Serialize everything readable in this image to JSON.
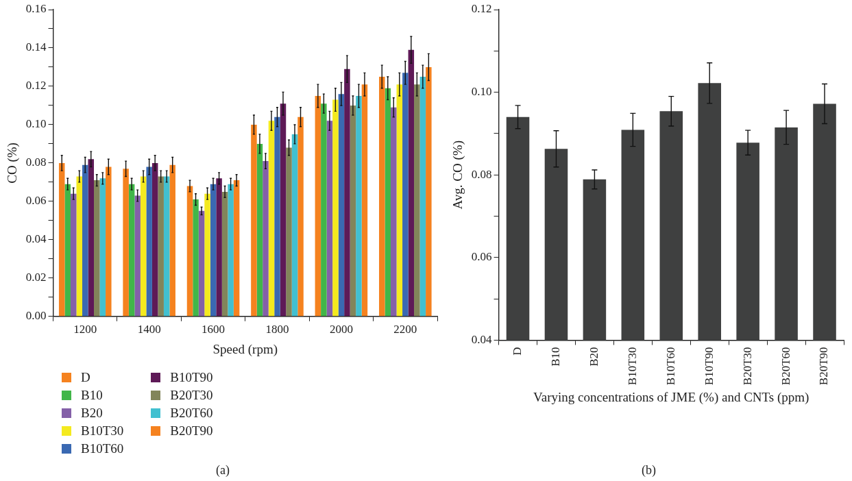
{
  "chart_data": [
    {
      "type": "bar",
      "xlabel": "Speed (rpm)",
      "ylabel": "CO (%)",
      "categories": [
        "1200",
        "1400",
        "1600",
        "1800",
        "2000",
        "2200"
      ],
      "ylim": [
        0,
        0.16
      ],
      "yticks": [
        {
          "value": 0,
          "label": "0.00"
        },
        {
          "value": 0.01,
          "label": null
        },
        0.02,
        {
          "value": 0.03,
          "label": null
        },
        0.04,
        {
          "value": 0.05,
          "label": null
        },
        0.06,
        {
          "value": 0.07,
          "label": null
        },
        0.08,
        {
          "value": 0.09,
          "label": null
        },
        {
          "value": 0.1,
          "label": "0.10"
        },
        {
          "value": 0.11,
          "label": null
        },
        0.12,
        {
          "value": 0.13,
          "label": null
        },
        0.14,
        {
          "value": 0.15,
          "label": null
        },
        0.16
      ],
      "legend": "bottom left",
      "series": [
        {
          "name": "D",
          "color": "#f5821f",
          "values": [
            0.08,
            0.077,
            0.068,
            0.1,
            0.115,
            0.125
          ],
          "errors": [
            0.004,
            0.004,
            0.003,
            0.005,
            0.006,
            0.006
          ]
        },
        {
          "name": "B10",
          "color": "#41b649",
          "values": [
            0.069,
            0.069,
            0.061,
            0.09,
            0.111,
            0.119
          ],
          "errors": [
            0.003,
            0.003,
            0.003,
            0.005,
            0.005,
            0.006
          ]
        },
        {
          "name": "B20",
          "color": "#8460a8",
          "values": [
            0.064,
            0.063,
            0.055,
            0.081,
            0.102,
            0.109
          ],
          "errors": [
            0.003,
            0.003,
            0.002,
            0.004,
            0.005,
            0.005
          ]
        },
        {
          "name": "B10T30",
          "color": "#f4ea1f",
          "values": [
            0.073,
            0.073,
            0.064,
            0.102,
            0.113,
            0.121
          ],
          "errors": [
            0.003,
            0.003,
            0.003,
            0.005,
            0.006,
            0.006
          ]
        },
        {
          "name": "B10T60",
          "color": "#3a69b2",
          "values": [
            0.079,
            0.078,
            0.069,
            0.104,
            0.116,
            0.127
          ],
          "errors": [
            0.004,
            0.004,
            0.003,
            0.005,
            0.006,
            0.006
          ]
        },
        {
          "name": "B10T90",
          "color": "#5e1a57",
          "values": [
            0.082,
            0.08,
            0.072,
            0.111,
            0.129,
            0.139
          ],
          "errors": [
            0.004,
            0.004,
            0.003,
            0.006,
            0.007,
            0.007
          ]
        },
        {
          "name": "B20T30",
          "color": "#82855a",
          "values": [
            0.071,
            0.073,
            0.065,
            0.088,
            0.11,
            0.121
          ],
          "errors": [
            0.003,
            0.003,
            0.003,
            0.004,
            0.005,
            0.006
          ]
        },
        {
          "name": "B20T60",
          "color": "#42c0d0",
          "values": [
            0.072,
            0.073,
            0.069,
            0.095,
            0.115,
            0.125
          ],
          "errors": [
            0.003,
            0.003,
            0.003,
            0.005,
            0.006,
            0.006
          ]
        },
        {
          "name": "B20T90",
          "color": "#f5821f",
          "values": [
            0.078,
            0.079,
            0.071,
            0.104,
            0.121,
            0.13
          ],
          "errors": [
            0.004,
            0.004,
            0.003,
            0.005,
            0.006,
            0.007
          ]
        }
      ],
      "annotations": [
        "(a)"
      ]
    },
    {
      "type": "bar",
      "xlabel": "Varying concentrations of JME (%) and CNTs (ppm)",
      "ylabel": "Avg. CO (%)",
      "categories": [
        "D",
        "B10",
        "B20",
        "B10T30",
        "B10T60",
        "B10T90",
        "B20T30",
        "B20T60",
        "B20T90"
      ],
      "values": [
        0.094,
        0.0863,
        0.0789,
        0.0909,
        0.0954,
        0.1022,
        0.0878,
        0.0915,
        0.0972
      ],
      "errors": [
        0.0028,
        0.0044,
        0.0023,
        0.004,
        0.0036,
        0.0049,
        0.003,
        0.0041,
        0.0048
      ],
      "color": "#3f4040",
      "ylim": [
        0.04,
        0.12
      ],
      "yticks": [
        0.04,
        {
          "value": 0.05,
          "label": null
        },
        0.06,
        {
          "value": 0.07,
          "label": null
        },
        0.08,
        {
          "value": 0.09,
          "label": null
        },
        {
          "value": 0.1,
          "label": "0.10"
        },
        {
          "value": 0.11,
          "label": null
        },
        0.12
      ],
      "annotations": [
        "(b)"
      ]
    }
  ]
}
